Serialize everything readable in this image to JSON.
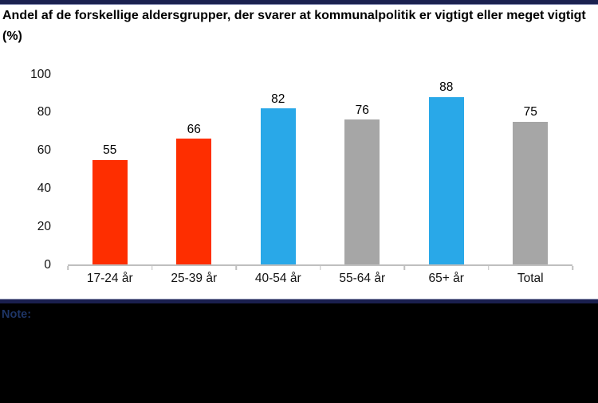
{
  "title": "Andel af de forskellige aldersgrupper, der svarer at kommunalpolitik er vigtigt eller meget vigtigt (%)",
  "footer": {
    "note_label": "Note:"
  },
  "colors": {
    "accent_navy": "#1B2150",
    "axis_line": "#BFBFBF",
    "bar_red": "#FE2E00",
    "bar_blue": "#29A8E8",
    "bar_gray": "#A6A6A6",
    "footer_bg": "#000000",
    "note_text": "#1E3566"
  },
  "chart_data": {
    "type": "bar",
    "title": "Andel af de forskellige aldersgrupper, der svarer at kommunalpolitik er vigtigt eller meget vigtigt (%)",
    "categories": [
      "17-24 år",
      "25-39 år",
      "40-54 år",
      "55-64 år",
      "65+ år",
      "Total"
    ],
    "values": [
      55,
      66,
      82,
      76,
      88,
      75
    ],
    "bar_colors": [
      "#FE2E00",
      "#FE2E00",
      "#29A8E8",
      "#A6A6A6",
      "#29A8E8",
      "#A6A6A6"
    ],
    "data_labels": [
      55,
      66,
      82,
      76,
      88,
      75
    ],
    "xlabel": "",
    "ylabel": "",
    "ylim": [
      0,
      100
    ],
    "yticks": [
      0,
      20,
      40,
      60,
      80,
      100
    ],
    "grid": false,
    "legend_position": "none"
  }
}
